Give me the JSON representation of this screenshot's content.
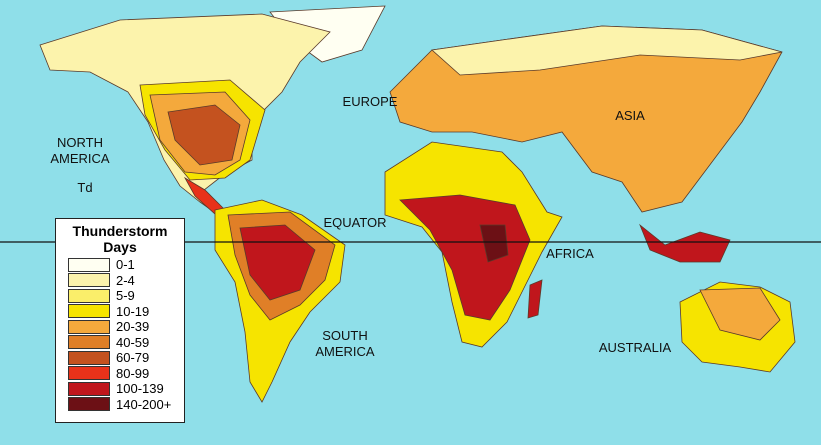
{
  "labels": [
    "NORTH AMERICA",
    "Td",
    "EUROPE",
    "ASIA",
    "EQUATOR",
    "AFRICA",
    "SOUTH AMERICA",
    "AUSTRALIA"
  ],
  "legend": {
    "title": "Thunderstorm Days",
    "items": [
      {
        "label": "0-1",
        "color": "#fffff2"
      },
      {
        "label": "2-4",
        "color": "#fcf3ac"
      },
      {
        "label": "5-9",
        "color": "#faee6a"
      },
      {
        "label": "10-19",
        "color": "#f6e400"
      },
      {
        "label": "20-39",
        "color": "#f4a93c"
      },
      {
        "label": "40-59",
        "color": "#e07f27"
      },
      {
        "label": "60-79",
        "color": "#c4521f"
      },
      {
        "label": "80-99",
        "color": "#e8321a"
      },
      {
        "label": "100-139",
        "color": "#c0161c"
      },
      {
        "label": "140-200+",
        "color": "#6c1015"
      }
    ]
  }
}
